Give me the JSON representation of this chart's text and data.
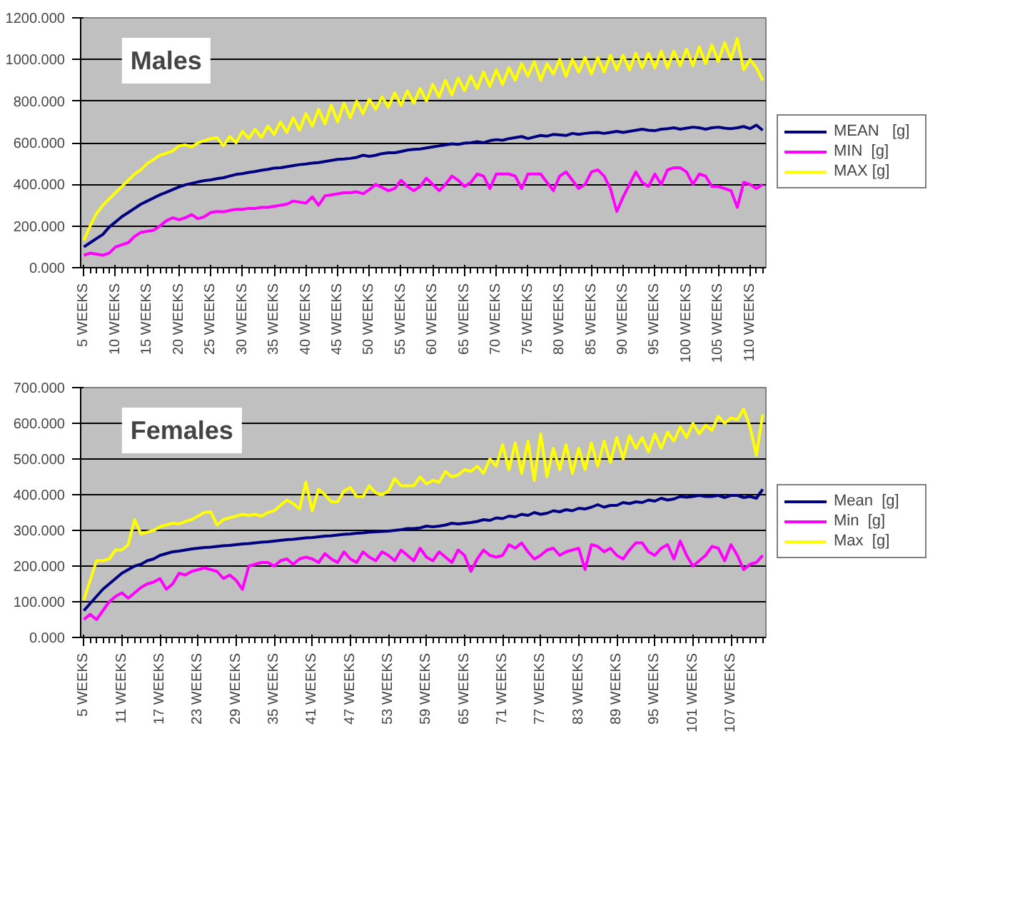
{
  "chart_data": [
    {
      "type": "line",
      "title": "Males",
      "legend": "right",
      "grid": "y",
      "categories": [
        "5 WEEKS",
        null,
        null,
        null,
        null,
        "10 WEEKS",
        null,
        null,
        null,
        null,
        "15 WEEKS",
        null,
        null,
        null,
        null,
        "20 WEEKS",
        null,
        null,
        null,
        null,
        "25 WEEKS",
        null,
        null,
        null,
        null,
        "30 WEEKS",
        null,
        null,
        null,
        null,
        "35 WEEKS",
        null,
        null,
        null,
        null,
        "40 WEEKS",
        null,
        null,
        null,
        null,
        "45 WEEKS",
        null,
        null,
        null,
        null,
        "50 WEEKS",
        null,
        null,
        null,
        null,
        "55 WEEKS",
        null,
        null,
        null,
        null,
        "60 WEEKS",
        null,
        null,
        null,
        null,
        "65 WEEKS",
        null,
        null,
        null,
        null,
        "70 WEEKS",
        null,
        null,
        null,
        null,
        "75 WEEKS",
        null,
        null,
        null,
        null,
        "80 WEEKS",
        null,
        null,
        null,
        null,
        "85 WEEKS",
        null,
        null,
        null,
        null,
        "90 WEEKS",
        null,
        null,
        null,
        null,
        "95 WEEKS",
        null,
        null,
        null,
        null,
        "100 WEEKS",
        null,
        null,
        null,
        null,
        "105 WEEKS",
        null,
        null,
        null,
        null,
        "110 WEEKS",
        null,
        null
      ],
      "ylim": [
        0,
        1200
      ],
      "yticks": [
        {
          "value": 0,
          "label": "0.000"
        },
        {
          "value": 200,
          "label": "200.000"
        },
        {
          "value": 400,
          "label": "400.000"
        },
        {
          "value": 600,
          "label": "600.000"
        },
        {
          "value": 800,
          "label": "800.000"
        },
        {
          "value": 1000,
          "label": "1000.000"
        },
        {
          "value": 1200,
          "label": "1200.000"
        }
      ],
      "series": [
        {
          "name": "MEAN   [g]",
          "color": "#000080",
          "values": [
            100,
            120,
            140,
            160,
            195,
            220,
            245,
            265,
            285,
            305,
            320,
            335,
            350,
            362,
            375,
            388,
            398,
            405,
            412,
            418,
            422,
            428,
            432,
            440,
            448,
            452,
            458,
            462,
            468,
            472,
            478,
            480,
            485,
            490,
            495,
            498,
            502,
            505,
            510,
            515,
            520,
            522,
            525,
            530,
            540,
            535,
            540,
            548,
            552,
            552,
            558,
            565,
            568,
            570,
            575,
            580,
            585,
            590,
            595,
            592,
            598,
            600,
            605,
            600,
            610,
            615,
            612,
            620,
            625,
            630,
            620,
            628,
            635,
            632,
            640,
            638,
            635,
            645,
            640,
            645,
            648,
            650,
            645,
            650,
            655,
            650,
            655,
            660,
            665,
            660,
            658,
            665,
            668,
            672,
            665,
            670,
            675,
            672,
            665,
            672,
            675,
            670,
            668,
            672,
            678,
            668,
            685,
            660
          ]
        },
        {
          "name": "MIN  [g]",
          "color": "#ff00ff",
          "values": [
            60,
            70,
            65,
            60,
            70,
            100,
            110,
            120,
            150,
            170,
            175,
            180,
            200,
            225,
            240,
            230,
            240,
            255,
            235,
            245,
            265,
            270,
            268,
            275,
            280,
            280,
            285,
            285,
            290,
            290,
            295,
            300,
            305,
            320,
            315,
            310,
            340,
            300,
            345,
            350,
            355,
            360,
            360,
            365,
            355,
            375,
            400,
            385,
            370,
            380,
            420,
            390,
            370,
            390,
            430,
            400,
            370,
            400,
            440,
            420,
            390,
            410,
            450,
            440,
            380,
            450,
            450,
            450,
            440,
            380,
            450,
            450,
            450,
            410,
            370,
            440,
            460,
            420,
            380,
            400,
            460,
            470,
            440,
            380,
            270,
            340,
            400,
            460,
            410,
            390,
            450,
            400,
            470,
            480,
            480,
            460,
            400,
            450,
            440,
            390,
            390,
            380,
            370,
            290,
            410,
            400,
            380,
            400
          ]
        },
        {
          "name": "MAX [g]",
          "color": "#ffff00",
          "values": [
            130,
            200,
            260,
            300,
            330,
            360,
            390,
            420,
            450,
            470,
            500,
            520,
            540,
            550,
            560,
            585,
            590,
            580,
            600,
            610,
            620,
            625,
            585,
            630,
            600,
            655,
            620,
            665,
            625,
            680,
            640,
            700,
            650,
            720,
            660,
            740,
            680,
            760,
            690,
            780,
            700,
            790,
            720,
            800,
            740,
            810,
            760,
            820,
            770,
            840,
            780,
            850,
            790,
            860,
            800,
            880,
            820,
            900,
            830,
            910,
            850,
            920,
            860,
            940,
            870,
            950,
            880,
            960,
            900,
            980,
            920,
            990,
            900,
            980,
            930,
            1000,
            920,
            1000,
            940,
            1010,
            930,
            1010,
            940,
            1020,
            950,
            1020,
            950,
            1030,
            960,
            1030,
            960,
            1040,
            960,
            1040,
            970,
            1050,
            970,
            1060,
            980,
            1070,
            990,
            1080,
            1000,
            1100,
            950,
            1000,
            960,
            900
          ]
        }
      ]
    },
    {
      "type": "line",
      "title": "Females",
      "legend": "right",
      "grid": "y",
      "categories": [
        "5 WEEKS",
        null,
        null,
        null,
        null,
        null,
        "11 WEEKS",
        null,
        null,
        null,
        null,
        null,
        "17 WEEKS",
        null,
        null,
        null,
        null,
        null,
        "23 WEEKS",
        null,
        null,
        null,
        null,
        null,
        "29 WEEKS",
        null,
        null,
        null,
        null,
        null,
        "35 WEEKS",
        null,
        null,
        null,
        null,
        null,
        "41 WEEKS",
        null,
        null,
        null,
        null,
        null,
        "47 WEEKS",
        null,
        null,
        null,
        null,
        null,
        "53 WEEKS",
        null,
        null,
        null,
        null,
        null,
        "59 WEEKS",
        null,
        null,
        null,
        null,
        null,
        "65 WEEKS",
        null,
        null,
        null,
        null,
        null,
        "71 WEEKS",
        null,
        null,
        null,
        null,
        null,
        "77 WEEKS",
        null,
        null,
        null,
        null,
        null,
        "83 WEEKS",
        null,
        null,
        null,
        null,
        null,
        "89 WEEKS",
        null,
        null,
        null,
        null,
        null,
        "95 WEEKS",
        null,
        null,
        null,
        null,
        null,
        "101 WEEKS",
        null,
        null,
        null,
        null,
        null,
        "107 WEEKS",
        null,
        null,
        null,
        null,
        null
      ],
      "ylim": [
        0,
        700
      ],
      "yticks": [
        {
          "value": 0,
          "label": "0.000"
        },
        {
          "value": 100,
          "label": "100.000"
        },
        {
          "value": 200,
          "label": "200.000"
        },
        {
          "value": 300,
          "label": "300.000"
        },
        {
          "value": 400,
          "label": "400.000"
        },
        {
          "value": 500,
          "label": "500.000"
        },
        {
          "value": 600,
          "label": "600.000"
        },
        {
          "value": 700,
          "label": "700.000"
        }
      ],
      "series": [
        {
          "name": "Mean  [g]",
          "color": "#000080",
          "values": [
            75,
            95,
            115,
            135,
            150,
            165,
            180,
            190,
            200,
            205,
            215,
            220,
            230,
            235,
            240,
            242,
            245,
            248,
            250,
            252,
            253,
            255,
            257,
            258,
            260,
            262,
            263,
            265,
            267,
            268,
            270,
            272,
            274,
            275,
            277,
            279,
            280,
            282,
            284,
            285,
            287,
            289,
            290,
            292,
            293,
            295,
            296,
            297,
            298,
            300,
            302,
            305,
            305,
            307,
            312,
            310,
            312,
            315,
            320,
            318,
            320,
            322,
            325,
            330,
            328,
            335,
            333,
            340,
            338,
            345,
            342,
            350,
            345,
            348,
            355,
            352,
            358,
            355,
            362,
            360,
            365,
            372,
            365,
            370,
            370,
            378,
            375,
            380,
            378,
            385,
            382,
            390,
            385,
            388,
            395,
            393,
            395,
            398,
            395,
            395,
            398,
            392,
            398,
            398,
            392,
            395,
            390,
            415
          ]
        },
        {
          "name": "Min  [g]",
          "color": "#ff00ff",
          "values": [
            50,
            65,
            50,
            75,
            100,
            115,
            125,
            110,
            125,
            140,
            150,
            155,
            165,
            135,
            150,
            180,
            175,
            185,
            190,
            195,
            190,
            185,
            165,
            175,
            160,
            135,
            200,
            205,
            210,
            210,
            200,
            215,
            220,
            205,
            220,
            225,
            220,
            210,
            235,
            220,
            210,
            240,
            220,
            210,
            240,
            225,
            215,
            240,
            230,
            215,
            245,
            230,
            215,
            250,
            225,
            215,
            240,
            225,
            210,
            245,
            230,
            185,
            220,
            245,
            230,
            225,
            230,
            260,
            250,
            265,
            240,
            220,
            230,
            245,
            250,
            230,
            240,
            245,
            250,
            190,
            260,
            255,
            240,
            250,
            230,
            220,
            245,
            265,
            265,
            240,
            230,
            250,
            260,
            220,
            270,
            230,
            200,
            215,
            230,
            255,
            250,
            215,
            260,
            230,
            190,
            205,
            210,
            230
          ]
        },
        {
          "name": "Max  [g]",
          "color": "#ffff00",
          "values": [
            105,
            160,
            215,
            215,
            220,
            245,
            245,
            260,
            330,
            290,
            295,
            300,
            310,
            315,
            320,
            318,
            325,
            330,
            340,
            350,
            352,
            315,
            330,
            335,
            340,
            345,
            342,
            345,
            340,
            350,
            355,
            370,
            385,
            375,
            360,
            435,
            355,
            415,
            400,
            380,
            380,
            410,
            420,
            395,
            395,
            425,
            405,
            400,
            410,
            445,
            425,
            425,
            425,
            450,
            430,
            440,
            435,
            465,
            450,
            455,
            470,
            465,
            480,
            460,
            500,
            480,
            540,
            470,
            545,
            460,
            550,
            440,
            570,
            450,
            530,
            470,
            540,
            460,
            530,
            470,
            545,
            480,
            550,
            490,
            560,
            500,
            565,
            530,
            560,
            520,
            570,
            530,
            575,
            550,
            590,
            560,
            600,
            570,
            595,
            580,
            620,
            600,
            615,
            610,
            640,
            590,
            510,
            625
          ]
        }
      ]
    }
  ]
}
